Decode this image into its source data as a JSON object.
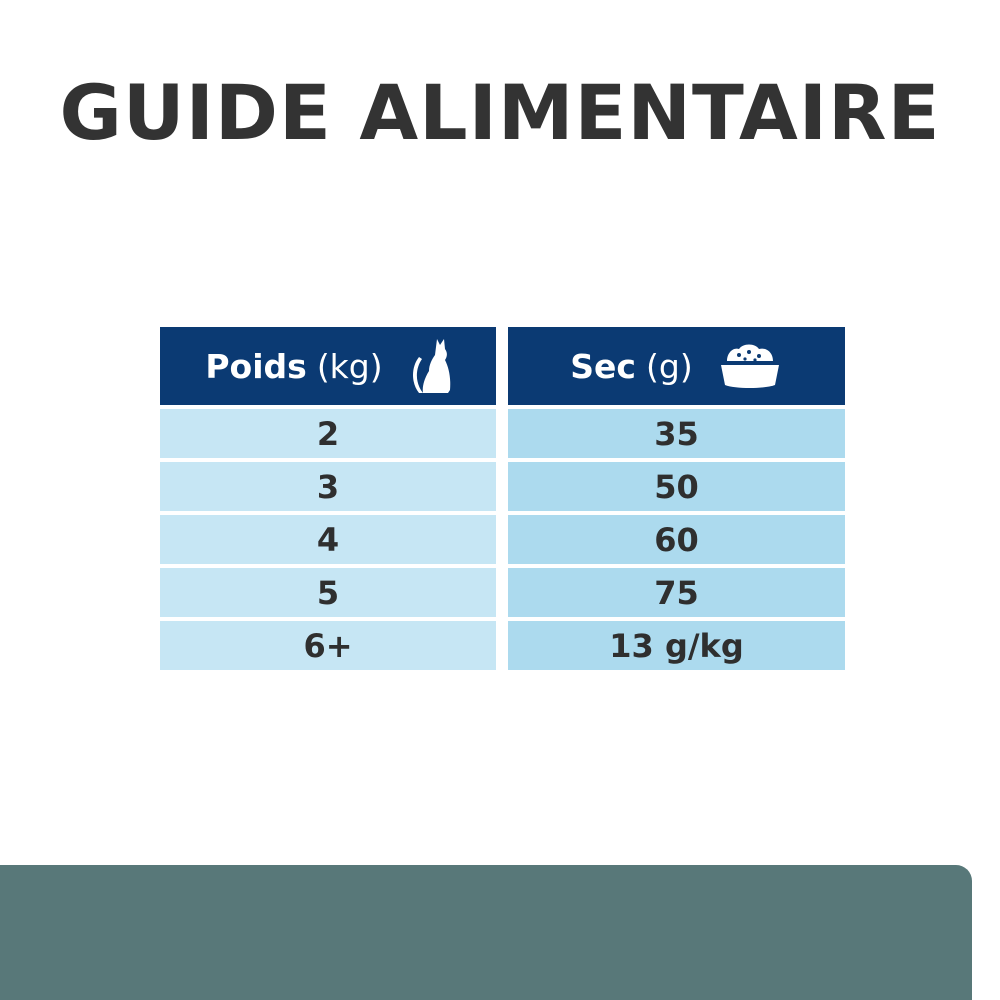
{
  "title": "GUIDE ALIMENTAIRE",
  "table": {
    "headers": [
      {
        "label": "Poids",
        "unit": "(kg)",
        "icon": "cat-icon"
      },
      {
        "label": "Sec",
        "unit": "(g)",
        "icon": "food-bowl-icon"
      }
    ],
    "rows": [
      [
        "2",
        "35"
      ],
      [
        "3",
        "50"
      ],
      [
        "4",
        "60"
      ],
      [
        "5",
        "75"
      ],
      [
        "6+",
        "13 g/kg"
      ]
    ]
  },
  "colors": {
    "header": "#0b3a73",
    "weight_cells": "#c6e6f4",
    "dry_cells": "#acdaee",
    "panel": "#587879",
    "title": "#333333"
  }
}
